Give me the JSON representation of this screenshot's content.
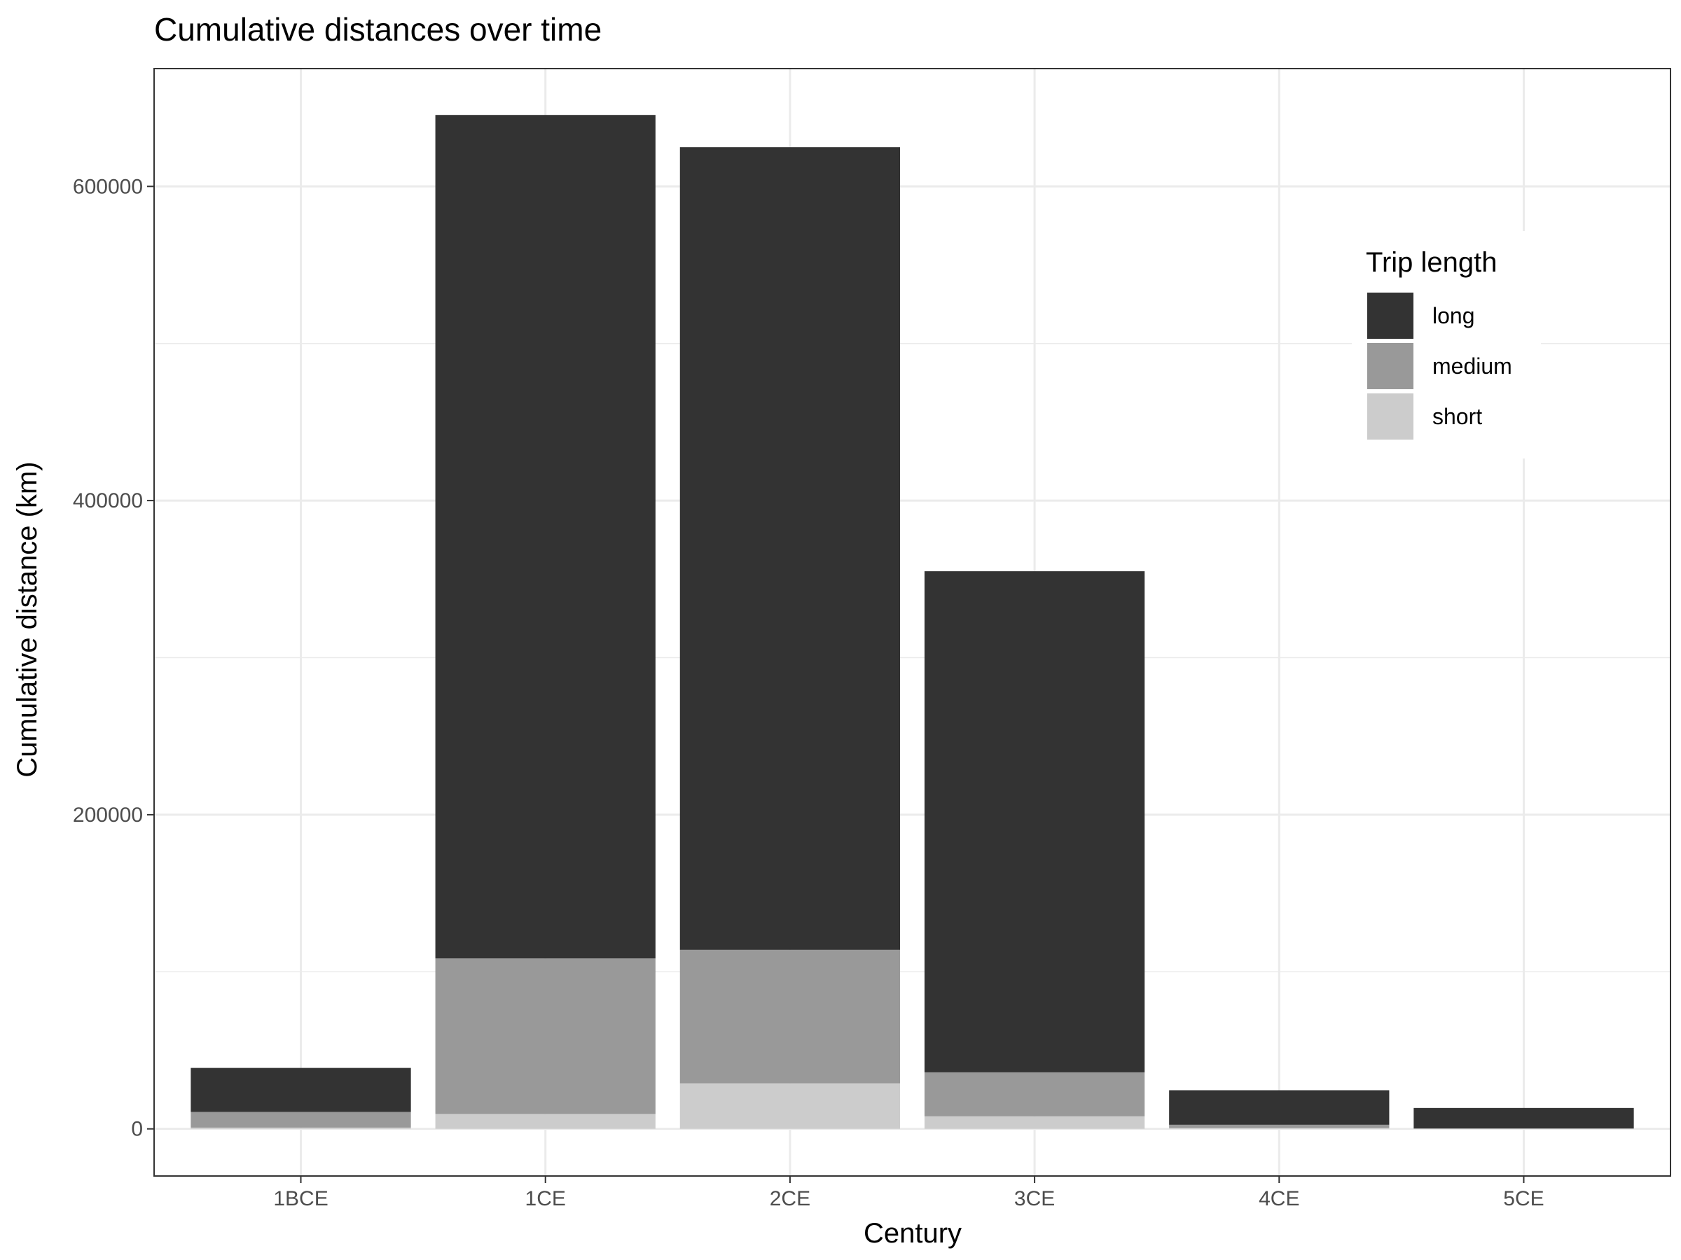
{
  "chart_data": {
    "type": "bar",
    "stacked": true,
    "title": "Cumulative distances over time",
    "xlabel": "Century",
    "ylabel": "Cumulative distance (km)",
    "categories": [
      "1BCE",
      "1CE",
      "2CE",
      "3CE",
      "4CE",
      "5CE"
    ],
    "ylim": [
      -30000,
      675000
    ],
    "yticks": [
      0,
      200000,
      400000,
      600000
    ],
    "ytick_labels": [
      "0",
      "200000",
      "400000",
      "600000"
    ],
    "grid": true,
    "legend": {
      "title": "Trip length",
      "position": "top-right",
      "entries": [
        "long",
        "medium",
        "short"
      ]
    },
    "series": [
      {
        "name": "short",
        "color": "#cccccc",
        "values": [
          800,
          9500,
          29000,
          8000,
          600,
          100
        ]
      },
      {
        "name": "medium",
        "color": "#999999",
        "values": [
          10000,
          99000,
          85000,
          28000,
          2000,
          200
        ]
      },
      {
        "name": "long",
        "color": "#333333",
        "values": [
          28000,
          537000,
          511000,
          319000,
          22000,
          13000
        ]
      }
    ]
  }
}
